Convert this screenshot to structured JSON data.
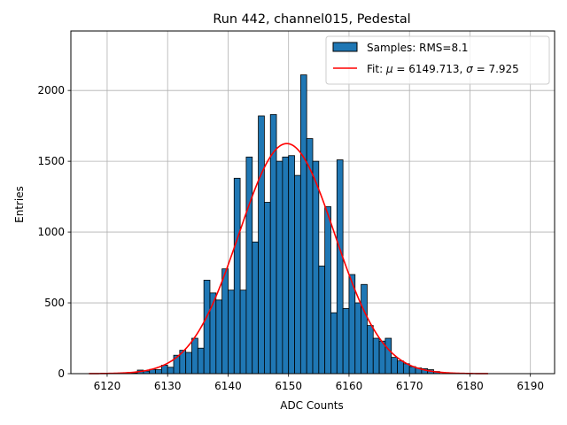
{
  "chart_data": {
    "type": "bar",
    "title": "Run 442, channel015, Pedestal",
    "xlabel": "ADC Counts",
    "ylabel": "Entries",
    "xlim": [
      6114,
      6194
    ],
    "ylim": [
      0,
      2420
    ],
    "xticks": [
      "6120",
      "6130",
      "6140",
      "6150",
      "6160",
      "6170",
      "6180",
      "6190"
    ],
    "yticks": [
      "0",
      "500",
      "1000",
      "1500",
      "2000"
    ],
    "grid": true,
    "legend_position": "top-right",
    "bar_color": "#1f77b4",
    "fit_color": "#ff0000",
    "bin_width": 1,
    "series": [
      {
        "name": "Samples: RMS=8.1",
        "bins_start": [
          6124,
          6125,
          6126,
          6127,
          6128,
          6129,
          6130,
          6131,
          6132,
          6133,
          6134,
          6135,
          6136,
          6137,
          6138,
          6139,
          6140,
          6141,
          6142,
          6143,
          6144,
          6145,
          6146,
          6147,
          6148,
          6149,
          6150,
          6151,
          6152,
          6153,
          6154,
          6155,
          6156,
          6157,
          6158,
          6159,
          6160,
          6161,
          6162,
          6163,
          6164,
          6165,
          6166,
          6167,
          6168,
          6169,
          6170,
          6171,
          6172,
          6173,
          6174
        ],
        "values": [
          5,
          25,
          18,
          30,
          28,
          60,
          45,
          130,
          165,
          150,
          250,
          180,
          660,
          570,
          520,
          740,
          590,
          1380,
          590,
          1530,
          930,
          1820,
          1210,
          1830,
          1500,
          1530,
          1540,
          1400,
          2110,
          1660,
          1500,
          760,
          1180,
          430,
          1510,
          460,
          700,
          500,
          630,
          340,
          250,
          230,
          250,
          115,
          90,
          70,
          50,
          40,
          35,
          28,
          15
        ]
      }
    ],
    "fit": {
      "label_prefix": "Fit: ",
      "mu_symbol": "μ",
      "mu_text": " = 6149.713, ",
      "sigma_symbol": "σ",
      "sigma_text": " = 7.925",
      "mu": 6149.713,
      "sigma": 7.925,
      "amplitude": 1625,
      "x_range": [
        6117,
        6183
      ]
    }
  }
}
